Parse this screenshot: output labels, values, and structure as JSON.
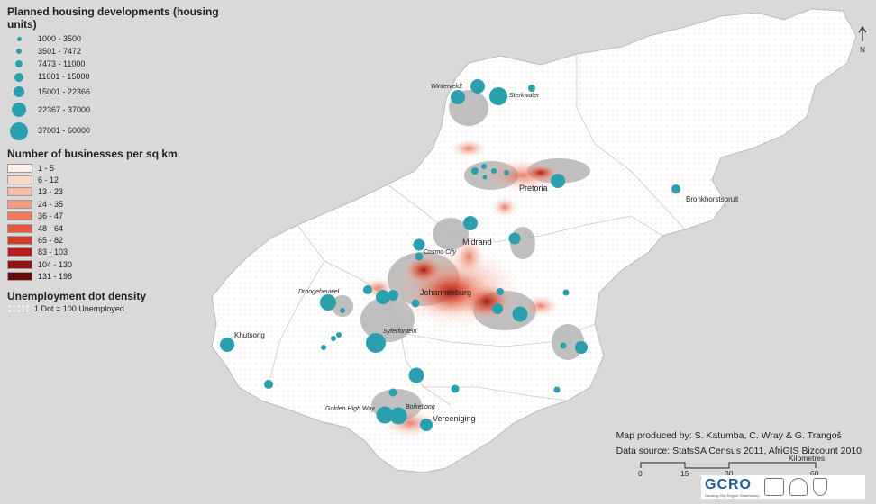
{
  "legend": {
    "housing_title": "Planned housing developments (housing units)",
    "housing_classes": [
      "1000 - 3500",
      "3501 - 7472",
      "7473 - 11000",
      "11001 - 15000",
      "15001 - 22366",
      "22367 - 37000",
      "37001 - 60000"
    ],
    "business_title": "Number of businesses per sq km",
    "business_classes": [
      {
        "label": "1 - 5",
        "color": "#fdeee8"
      },
      {
        "label": "6 - 12",
        "color": "#fbd9c9"
      },
      {
        "label": "13 - 23",
        "color": "#f8bda4"
      },
      {
        "label": "24 - 35",
        "color": "#f49b7c"
      },
      {
        "label": "36 - 47",
        "color": "#ef7a5a"
      },
      {
        "label": "48 - 64",
        "color": "#e55a3e"
      },
      {
        "label": "65 - 82",
        "color": "#d33a2a"
      },
      {
        "label": "83 - 103",
        "color": "#b81f1c"
      },
      {
        "label": "104 - 130",
        "color": "#921112"
      },
      {
        "label": "131 - 198",
        "color": "#6b0a0d"
      }
    ],
    "unemployment_title": "Unemployment dot density",
    "unemployment_label": "1 Dot = 100 Unemployed"
  },
  "places": {
    "winterveldt": "Winterveldt",
    "sterkwater": "Sterkwater",
    "pretoria": "Pretoria",
    "bronkhorstspruit": "Bronkhorstspruit",
    "midrand": "Midrand",
    "cosmo_city": "Cosmo City",
    "droogeheuwel": "Droogeheuwel",
    "johannesburg": "Johannesburg",
    "khutsong": "Khutsong",
    "syferfontein": "Syferfontein",
    "golden_high_way": "Golden High Way",
    "boiketlong": "Boiketlong",
    "vereeniging": "Vereeniging"
  },
  "credits": {
    "produced_by": "Map produced by: S. Katumba, C. Wray & G. Trangoš",
    "data_source": "Data source: StatsSA Census 2011, AfriGIS Bizcount 2010"
  },
  "scale": {
    "unit": "Kilometres",
    "ticks": [
      "0",
      "15",
      "30",
      "60"
    ]
  },
  "logo": {
    "name": "GCRO",
    "subtitle": "Gauteng City-Region Observatory"
  },
  "north_symbol": "N",
  "colors": {
    "housing_dot": "#2a9fae",
    "province_fill": "#ffffff",
    "background": "#d9d9d9",
    "urban_grey": "#b5b5b5"
  }
}
